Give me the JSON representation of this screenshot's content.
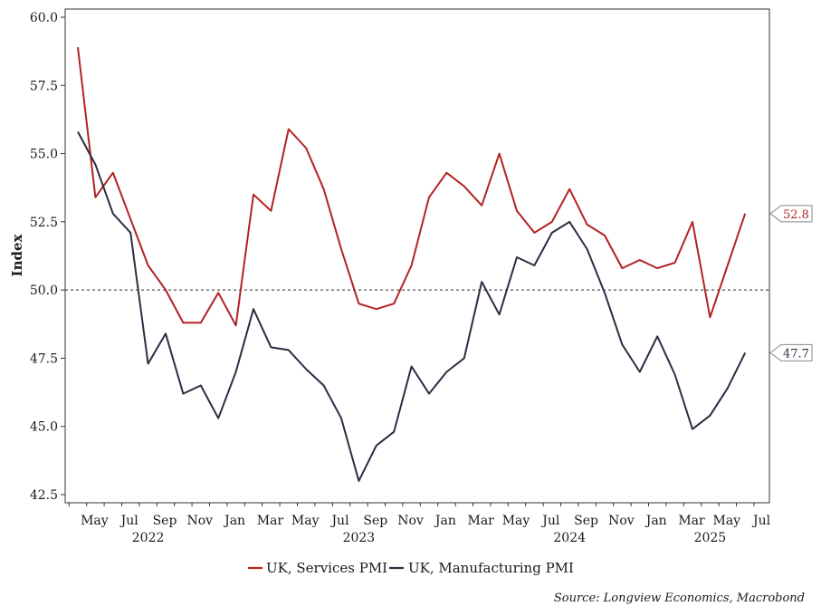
{
  "chart_data": {
    "type": "line",
    "ylabel": "Index",
    "ylim": [
      42.5,
      60.0
    ],
    "yticks": [
      "60.0",
      "57.5",
      "55.0",
      "52.5",
      "50.0",
      "47.5",
      "45.0",
      "42.5"
    ],
    "xticks": [
      "May",
      "Jul",
      "Sep",
      "Nov",
      "Jan",
      "Mar",
      "May",
      "Jul",
      "Sep",
      "Nov",
      "Jan",
      "Mar",
      "May",
      "Jul",
      "Sep",
      "Nov",
      "Jan",
      "Mar",
      "May",
      "Jul"
    ],
    "years": [
      {
        "label": "2022",
        "month": "Aug 2022"
      },
      {
        "label": "2023",
        "month": "Aug 2023"
      },
      {
        "label": "2024",
        "month": "Aug 2024"
      },
      {
        "label": "2025",
        "month": "Apr 2025"
      }
    ],
    "x": [
      "Apr 2022",
      "May 2022",
      "Jun 2022",
      "Jul 2022",
      "Aug 2022",
      "Sep 2022",
      "Oct 2022",
      "Nov 2022",
      "Dec 2022",
      "Jan 2023",
      "Feb 2023",
      "Mar 2023",
      "Apr 2023",
      "May 2023",
      "Jun 2023",
      "Jul 2023",
      "Aug 2023",
      "Sep 2023",
      "Oct 2023",
      "Nov 2023",
      "Dec 2023",
      "Jan 2024",
      "Feb 2024",
      "Mar 2024",
      "Apr 2024",
      "May 2024",
      "Jun 2024",
      "Jul 2024",
      "Aug 2024",
      "Sep 2024",
      "Oct 2024",
      "Nov 2024",
      "Dec 2024",
      "Jan 2025",
      "Feb 2025",
      "Mar 2025",
      "Apr 2025",
      "May 2025",
      "Jun 2025"
    ],
    "reference_line": 50.0,
    "series": [
      {
        "name": "UK, Services PMI",
        "color": "#b22222",
        "values": [
          58.9,
          53.4,
          54.3,
          52.6,
          50.9,
          50.0,
          48.8,
          48.8,
          49.9,
          48.7,
          53.5,
          52.9,
          55.9,
          55.2,
          53.7,
          51.5,
          49.5,
          49.3,
          49.5,
          50.9,
          53.4,
          54.3,
          53.8,
          53.1,
          55.0,
          52.9,
          52.1,
          52.5,
          53.7,
          52.4,
          52.0,
          50.8,
          51.1,
          50.8,
          51.0,
          52.5,
          49.0,
          50.9,
          52.8
        ],
        "last_label": "52.8"
      },
      {
        "name": "UK, Manufacturing PMI",
        "color": "#2b2d42",
        "values": [
          55.8,
          54.6,
          52.8,
          52.1,
          47.3,
          48.4,
          46.2,
          46.5,
          45.3,
          47.0,
          49.3,
          47.9,
          47.8,
          47.1,
          46.5,
          45.3,
          43.0,
          44.3,
          44.8,
          47.2,
          46.2,
          47.0,
          47.5,
          50.3,
          49.1,
          51.2,
          50.9,
          52.1,
          52.5,
          51.5,
          49.9,
          48.0,
          47.0,
          48.3,
          46.9,
          44.9,
          45.4,
          46.4,
          47.7
        ],
        "last_label": "47.7"
      }
    ],
    "legend_position": "bottom-center",
    "source": "Source: Longview Economics, Macrobond"
  }
}
